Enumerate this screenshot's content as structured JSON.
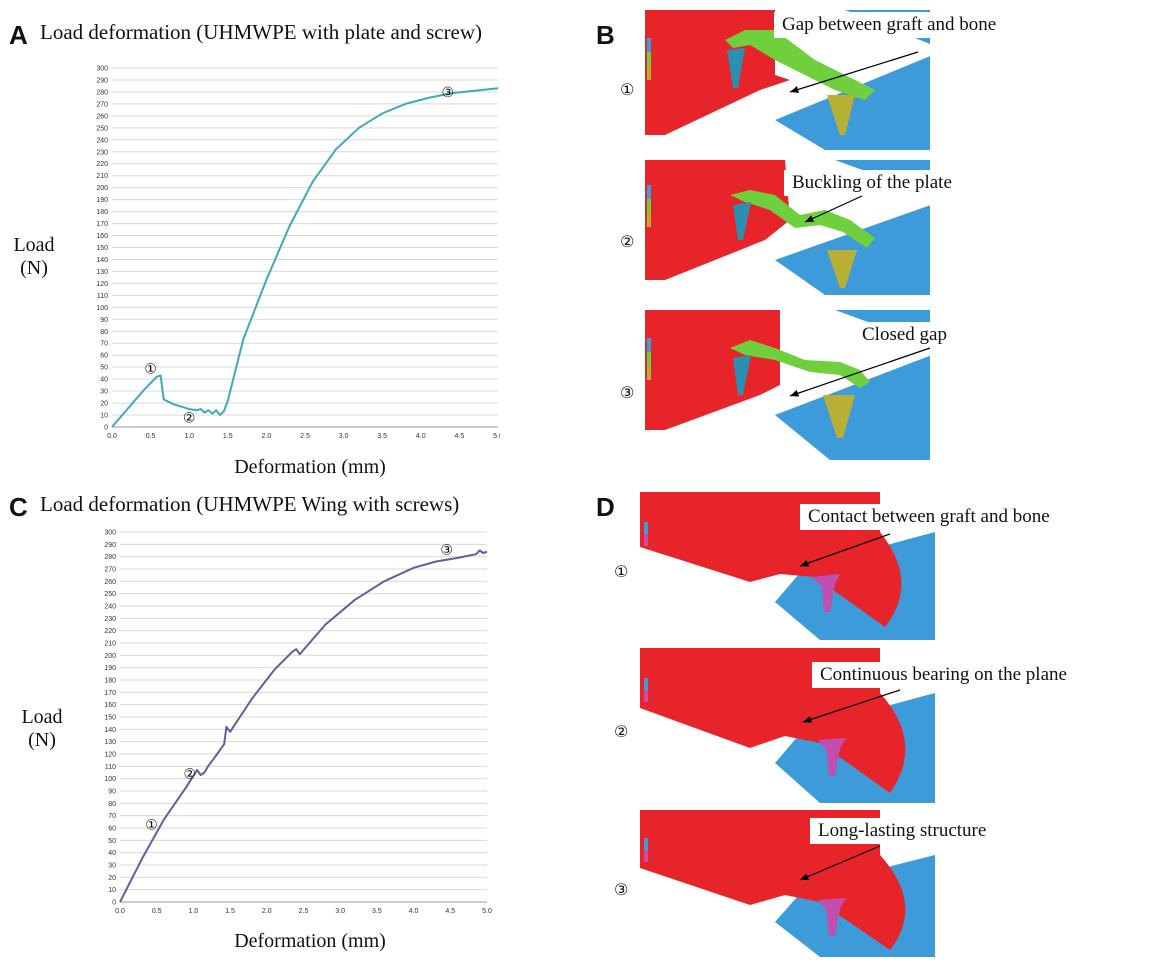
{
  "panels": {
    "A": {
      "letter": "A",
      "title": "Load deformation (UHMWPE with plate and screw)",
      "ylabel_line1": "Load",
      "ylabel_line2": "(N)",
      "xlabel": "Deformation (mm)",
      "markers": [
        "①",
        "②",
        "③"
      ]
    },
    "B": {
      "letter": "B",
      "steps": [
        "①",
        "②",
        "③"
      ],
      "callouts": [
        "Gap between graft and bone",
        "Buckling of the plate",
        "Closed gap"
      ]
    },
    "C": {
      "letter": "C",
      "title": "Load deformation (UHMWPE Wing with screws)",
      "ylabel_line1": "Load",
      "ylabel_line2": "(N)",
      "xlabel": "Deformation (mm)",
      "markers": [
        "①",
        "②",
        "③"
      ]
    },
    "D": {
      "letter": "D",
      "steps": [
        "①",
        "②",
        "③"
      ],
      "callouts": [
        "Contact between graft and bone",
        "Continuous bearing on the plane",
        "Long-lasting structure"
      ]
    }
  },
  "colors": {
    "series_A": "#3fa9b8",
    "series_C": "#6a5a9c",
    "grid": "#d9d9d9",
    "graft_red": "#e8242b",
    "bone_blue": "#3c9bd8",
    "plate_green": "#6fcf3d",
    "screw_teal": "#2a8fb0",
    "screw_olive": "#b8b035",
    "screw_magenta": "#c04fb0"
  },
  "chart_data": [
    {
      "type": "line",
      "title": "Load deformation (UHMWPE with plate and screw)",
      "xlabel": "Deformation (mm)",
      "ylabel": "Load (N)",
      "xlim": [
        0,
        5.0
      ],
      "ylim": [
        0,
        300
      ],
      "xticks": [
        0,
        0.5,
        1.0,
        1.5,
        2.0,
        2.5,
        3.0,
        3.5,
        4.0,
        4.5,
        5.0
      ],
      "yticks_step": 10,
      "grid": true,
      "x": [
        0,
        0.2,
        0.4,
        0.58,
        0.63,
        0.67,
        0.8,
        1.0,
        1.1,
        1.15,
        1.2,
        1.25,
        1.3,
        1.35,
        1.4,
        1.45,
        1.5,
        1.7,
        2.0,
        2.3,
        2.6,
        2.9,
        3.2,
        3.5,
        3.8,
        4.1,
        4.4,
        4.7,
        5.0
      ],
      "y": [
        0,
        15,
        30,
        42,
        43,
        23,
        19,
        15,
        14,
        15,
        12,
        14,
        11,
        14,
        10,
        13,
        22,
        73,
        123,
        168,
        205,
        232,
        250,
        262,
        270,
        275,
        279,
        281,
        283
      ],
      "annotations": [
        {
          "label": "①",
          "x": 0.5,
          "y": 49
        },
        {
          "label": "②",
          "x": 1.0,
          "y": 8
        },
        {
          "label": "③",
          "x": 4.35,
          "y": 280
        }
      ]
    },
    {
      "type": "line",
      "title": "Load deformation (UHMWPE Wing with screws)",
      "xlabel": "Deformation (mm)",
      "ylabel": "Load (N)",
      "xlim": [
        0,
        5.0
      ],
      "ylim": [
        0,
        300
      ],
      "xticks": [
        0,
        0.5,
        1.0,
        1.5,
        2.0,
        2.5,
        3.0,
        3.5,
        4.0,
        4.5,
        5.0
      ],
      "yticks_step": 10,
      "grid": true,
      "x": [
        0,
        0.3,
        0.6,
        0.9,
        1.05,
        1.1,
        1.15,
        1.2,
        1.3,
        1.42,
        1.45,
        1.5,
        1.8,
        2.1,
        2.35,
        2.4,
        2.45,
        2.8,
        3.2,
        3.6,
        4.0,
        4.3,
        4.6,
        4.85,
        4.9,
        4.95,
        5.0
      ],
      "y": [
        0,
        35,
        67,
        93,
        107,
        103,
        105,
        110,
        118,
        128,
        142,
        138,
        165,
        188,
        203,
        205,
        201,
        225,
        245,
        260,
        271,
        276,
        279,
        282,
        285,
        283,
        284
      ],
      "annotations": [
        {
          "label": "①",
          "x": 0.43,
          "y": 63
        },
        {
          "label": "②",
          "x": 0.95,
          "y": 104
        },
        {
          "label": "③",
          "x": 4.45,
          "y": 286
        }
      ]
    }
  ]
}
